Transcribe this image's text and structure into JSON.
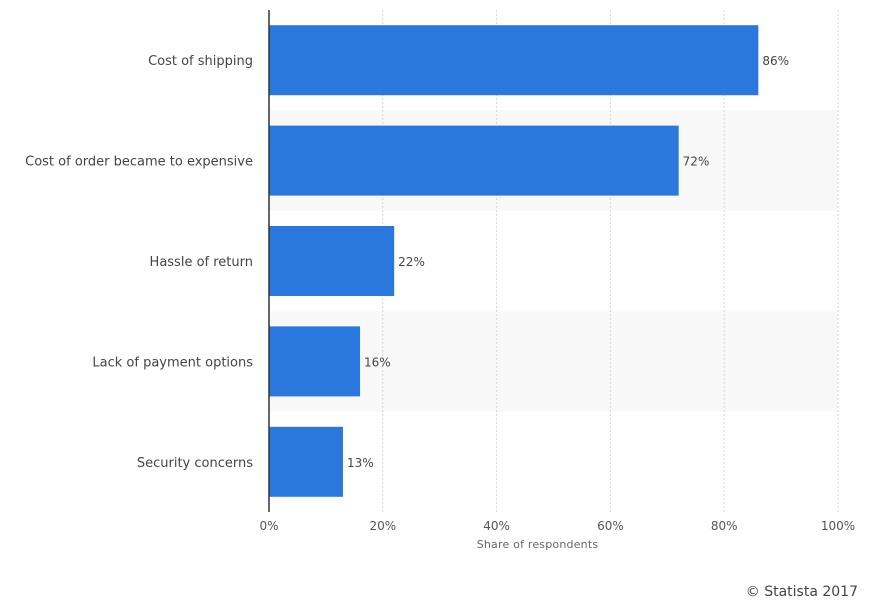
{
  "chart_data": {
    "type": "bar",
    "orientation": "horizontal",
    "categories": [
      "Cost of shipping",
      "Cost of order became to expensive",
      "Hassle of return",
      "Lack of payment options",
      "Security concerns"
    ],
    "values": [
      86,
      72,
      22,
      16,
      13
    ],
    "value_labels": [
      "86%",
      "72%",
      "22%",
      "16%",
      "13%"
    ],
    "xlabel": "Share of respondents",
    "xlim": [
      0,
      100
    ],
    "ticks": [
      0,
      20,
      40,
      60,
      80,
      100
    ],
    "tick_labels": [
      "0%",
      "20%",
      "40%",
      "60%",
      "80%",
      "100%"
    ],
    "grid": true,
    "legend": "none",
    "colors": {
      "bar": "#2a77de",
      "band": "#f8f8f8",
      "grid": "#d6d6d6",
      "axis": "#333333"
    }
  },
  "credit": "© Statista 2017"
}
